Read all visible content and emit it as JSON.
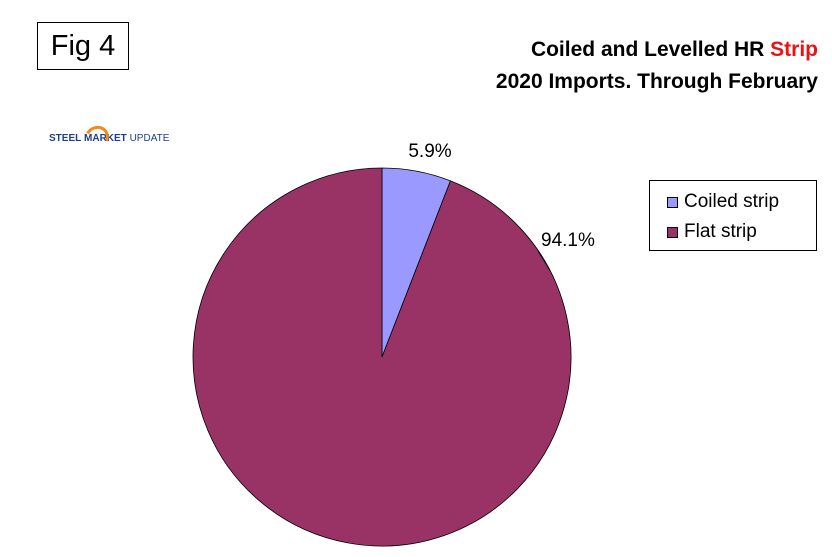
{
  "figure_label": "Fig 4",
  "title": {
    "line1_prefix": "Coiled and Levelled HR ",
    "line1_accent": "Strip",
    "line2": "2020 Imports. Through February",
    "accent_color": "#ee1111"
  },
  "logo": {
    "steel": "STEEL",
    "market": "MARKET",
    "update": "UPDATE"
  },
  "chart_data": {
    "type": "pie",
    "title": "Coiled and Levelled HR Strip 2020 Imports. Through February",
    "legend_position": "right",
    "slices": [
      {
        "name": "Coiled strip",
        "value": 5.9,
        "label": "5.9%",
        "color": "#9999ff"
      },
      {
        "name": "Flat strip",
        "value": 94.1,
        "label": "94.1%",
        "color": "#993366"
      }
    ]
  }
}
